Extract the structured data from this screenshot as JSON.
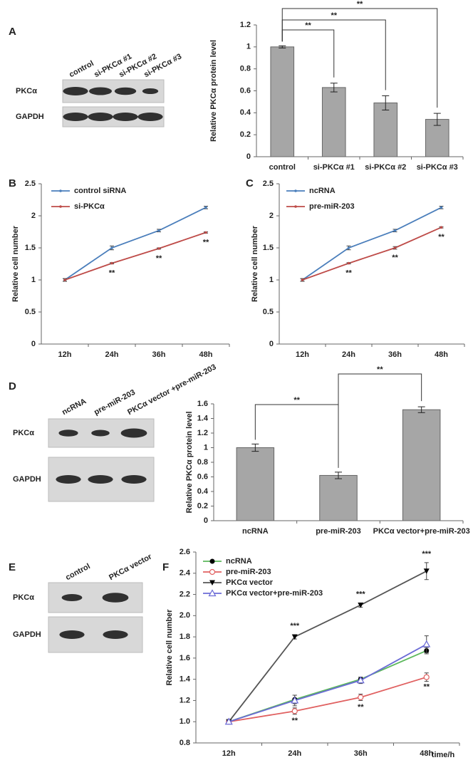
{
  "chart_data": [
    {
      "type": "bar",
      "ylabel": "Relative PKCα protein level",
      "categories": [
        "control",
        "si-PKCα  #1",
        "si-PKCα  #2",
        "si-PKCα  #3"
      ],
      "values": [
        1.0,
        0.63,
        0.49,
        0.34
      ],
      "errors": [
        0.01,
        0.04,
        0.065,
        0.055
      ],
      "color": "#a6a6a6",
      "ylim": [
        0,
        1.2
      ],
      "yticks": [
        0,
        0.2,
        0.4,
        0.6,
        0.8,
        1,
        1.2
      ],
      "significance": [
        "**",
        "**",
        "**"
      ]
    },
    {
      "type": "line",
      "panel": "B",
      "ylabel": "Relative cell number",
      "categories": [
        "12h",
        "24h",
        "36h",
        "48h"
      ],
      "series": [
        {
          "name": "control siRNA",
          "color": "#4a7ebb",
          "values": [
            1.0,
            1.5,
            1.77,
            2.13
          ],
          "errors": [
            0.02,
            0.03,
            0.02,
            0.02
          ]
        },
        {
          "name": "si-PKCα",
          "color": "#be4b48",
          "values": [
            1.0,
            1.26,
            1.49,
            1.74
          ],
          "errors": [
            0.02,
            0.01,
            0.01,
            0.01
          ],
          "point_labels": [
            null,
            "**",
            "**",
            "**"
          ],
          "label_position": "below"
        }
      ],
      "ylim": [
        0,
        2.5
      ],
      "yticks": [
        0,
        0.5,
        1,
        1.5,
        2,
        2.5
      ],
      "legend": "upper left"
    },
    {
      "type": "line",
      "panel": "C",
      "ylabel": "Relative cell number",
      "categories": [
        "12h",
        "24h",
        "36h",
        "48h"
      ],
      "series": [
        {
          "name": "ncRNA",
          "color": "#4a7ebb",
          "values": [
            1.0,
            1.5,
            1.77,
            2.13
          ],
          "errors": [
            0.02,
            0.03,
            0.02,
            0.02
          ]
        },
        {
          "name": "pre-miR-203",
          "color": "#be4b48",
          "values": [
            1.0,
            1.26,
            1.5,
            1.82
          ],
          "errors": [
            0.02,
            0.01,
            0.02,
            0.01
          ],
          "point_labels": [
            null,
            "**",
            "**",
            "**"
          ],
          "label_position": "below"
        }
      ],
      "ylim": [
        0,
        2.5
      ],
      "yticks": [
        0,
        0.5,
        1,
        1.5,
        2,
        2.5
      ],
      "legend": "upper left"
    },
    {
      "type": "bar",
      "ylabel": "Relative PKCα protein level",
      "categories": [
        "ncRNA",
        "pre-miR-203",
        "PKCα vector+pre-miR-203"
      ],
      "values": [
        1.0,
        0.62,
        1.52
      ],
      "errors": [
        0.05,
        0.045,
        0.04
      ],
      "color": "#a6a6a6",
      "ylim": [
        0,
        1.6
      ],
      "yticks": [
        0,
        0.2,
        0.4,
        0.6,
        0.8,
        1,
        1.2,
        1.4,
        1.6
      ],
      "significance": [
        "**",
        "**"
      ]
    },
    {
      "type": "line",
      "panel": "F",
      "ylabel": "Relative cell number",
      "xlabel": "time/h",
      "categories": [
        "12h",
        "24h",
        "36h",
        "48h"
      ],
      "series": [
        {
          "name": "ncRNA",
          "color": "#5cb85c",
          "marker": "circle",
          "marker_color": "#000000",
          "values": [
            1.0,
            1.21,
            1.4,
            1.67
          ],
          "errors": [
            0.02,
            0.04,
            0.02,
            0.03
          ]
        },
        {
          "name": "pre-miR-203",
          "color": "#e06060",
          "marker": "open-circle",
          "marker_color": "#e06060",
          "values": [
            1.0,
            1.1,
            1.23,
            1.42
          ],
          "errors": [
            0.02,
            0.03,
            0.03,
            0.04
          ],
          "point_labels": [
            null,
            "**",
            "**",
            "**"
          ],
          "label_position": "below"
        },
        {
          "name": "PKCα  vector",
          "color": "#555555",
          "marker": "triangle-down",
          "marker_color": "#000000",
          "values": [
            1.0,
            1.8,
            2.1,
            2.42
          ],
          "errors": [
            0.02,
            0.02,
            0.02,
            0.08
          ],
          "point_labels": [
            null,
            "***",
            "***",
            "***"
          ],
          "label_position": "above"
        },
        {
          "name": "PKCα  vector+pre-miR-203",
          "color": "#6b6bd6",
          "marker": "open-triangle",
          "marker_color": "#6b6bd6",
          "values": [
            1.0,
            1.2,
            1.39,
            1.73
          ],
          "errors": [
            0.02,
            0.05,
            0.03,
            0.08
          ]
        }
      ],
      "ylim": [
        0.8,
        2.6
      ],
      "yticks": [
        0.8,
        {
          "value": 1,
          "label": "1.0"
        },
        1.2,
        1.4,
        1.6,
        1.8,
        {
          "value": 2,
          "label": "2.0"
        },
        2.2,
        2.4,
        2.6
      ],
      "legend": "upper left"
    }
  ],
  "blots": [
    {
      "panel": "A",
      "lanes": [
        "control",
        "si-PKCα #1",
        "si-PKCα #2",
        "si-PKCα #3"
      ],
      "rows": [
        "PKCα",
        "GAPDH"
      ]
    },
    {
      "panel": "D",
      "lanes": [
        "ncRNA",
        "pre-miR-203",
        "PKCα vector +pre-miR-203"
      ],
      "rows": [
        "PKCα",
        "GAPDH"
      ]
    },
    {
      "panel": "E",
      "lanes": [
        "control",
        "PKCα vector"
      ],
      "rows": [
        "PKCα",
        "GAPDH"
      ]
    }
  ]
}
